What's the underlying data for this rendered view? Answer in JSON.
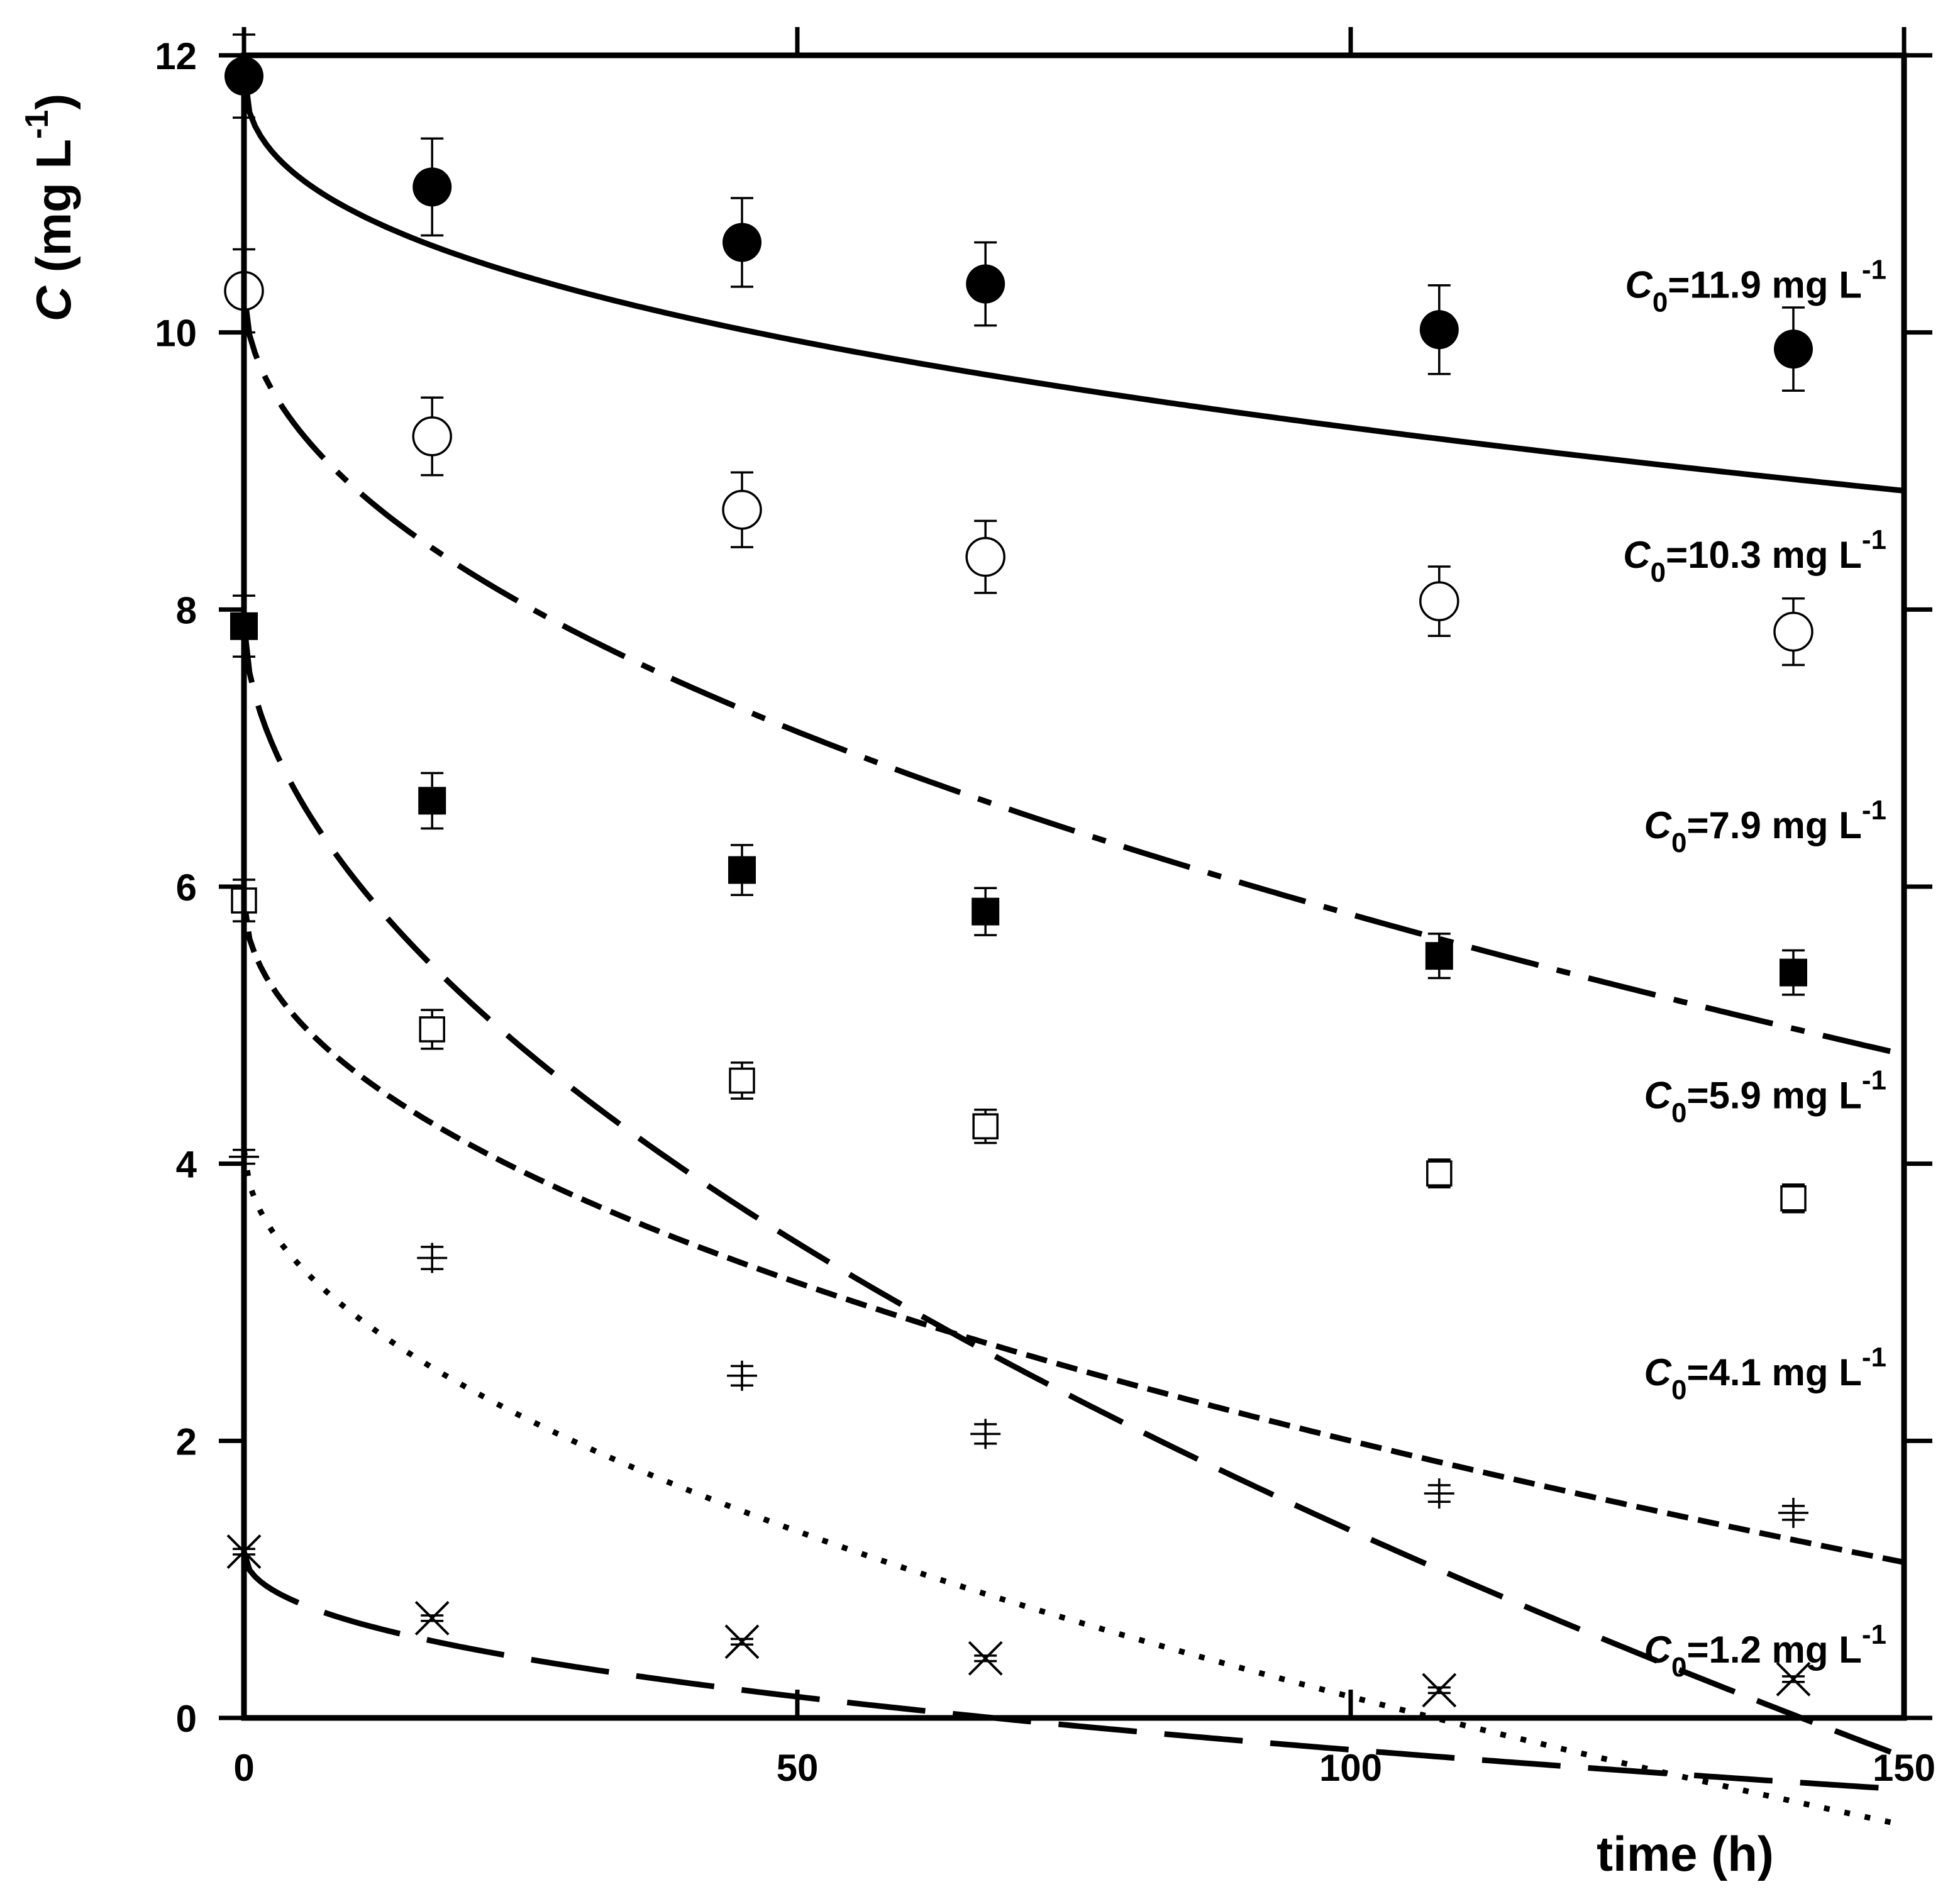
{
  "chart_data": {
    "type": "scatter",
    "xlabel": "time (h)",
    "ylabel": {
      "symbol": "C",
      "rest": " (mg L",
      "sup": "-1",
      "close": ")"
    },
    "xlim": [
      0,
      150
    ],
    "ylim": [
      0,
      12
    ],
    "xticks": [
      0,
      50,
      100,
      150
    ],
    "yticks": [
      0,
      2,
      4,
      6,
      8,
      10,
      12
    ],
    "grid": false,
    "series": [
      {
        "name": "C0=11.9 mg L-1",
        "label": {
          "symbol": "C",
          "sub": "0",
          "text": "=11.9 mg L",
          "sup": "-1",
          "x": 150,
          "y": 10.25
        },
        "marker": "filled-circle",
        "line": "solid",
        "x": [
          0,
          17,
          45,
          67,
          108,
          140
        ],
        "y": [
          11.85,
          11.05,
          10.65,
          10.35,
          10.02,
          9.88
        ],
        "err": [
          0.3,
          0.35,
          0.32,
          0.3,
          0.32,
          0.3
        ],
        "fit": {
          "a": 11.9,
          "b": 0.41,
          "c": 0.4
        }
      },
      {
        "name": "C0=10.3 mg L-1",
        "label": {
          "symbol": "C",
          "sub": "0",
          "text": "=10.3 mg L",
          "sup": "-1",
          "x": 150,
          "y": 8.3
        },
        "marker": "open-circle",
        "line": "dashdot",
        "x": [
          0,
          17,
          45,
          67,
          108,
          140
        ],
        "y": [
          10.3,
          9.25,
          8.72,
          8.38,
          8.06,
          7.84
        ],
        "err": [
          0.3,
          0.28,
          0.27,
          0.26,
          0.25,
          0.24
        ],
        "fit": {
          "a": 10.3,
          "b": 0.45,
          "c": 0.5
        }
      },
      {
        "name": "C0=7.9 mg L-1",
        "label": {
          "symbol": "C",
          "sub": "0",
          "text": "=7.9 mg L",
          "sup": "-1",
          "x": 150,
          "y": 6.35
        },
        "marker": "filled-square",
        "line": "dashed",
        "x": [
          0,
          17,
          45,
          67,
          108,
          140
        ],
        "y": [
          7.88,
          6.62,
          6.12,
          5.82,
          5.5,
          5.38
        ],
        "err": [
          0.22,
          0.2,
          0.18,
          0.17,
          0.16,
          0.16
        ],
        "fit": {
          "a": 7.9,
          "b": 0.52,
          "c": 0.55
        }
      },
      {
        "name": "C0=5.9 mg L-1",
        "label": {
          "symbol": "C",
          "sub": "0",
          "text": "=5.9 mg L",
          "sup": "-1",
          "x": 150,
          "y": 4.4
        },
        "marker": "open-square",
        "line": "short-dash",
        "x": [
          0,
          17,
          45,
          67,
          108,
          140
        ],
        "y": [
          5.9,
          4.97,
          4.6,
          4.27,
          3.93,
          3.75
        ],
        "err": [
          0.15,
          0.14,
          0.13,
          0.12,
          0.1,
          0.1
        ],
        "fit": {
          "a": 5.9,
          "b": 0.39,
          "c": 0.5
        }
      },
      {
        "name": "C0=4.1 mg L-1",
        "label": {
          "symbol": "C",
          "sub": "0",
          "text": "=4.1 mg L",
          "sup": "-1",
          "x": 150,
          "y": 2.4
        },
        "marker": "plus",
        "line": "dotted",
        "x": [
          0,
          17,
          45,
          67,
          108,
          140
        ],
        "y": [
          4.05,
          3.32,
          2.47,
          2.05,
          1.62,
          1.48
        ],
        "err": [
          0.05,
          0.08,
          0.07,
          0.07,
          0.06,
          0.05
        ],
        "fit": {
          "a": 4.1,
          "b": 0.36,
          "c": 0.52
        }
      },
      {
        "name": "C0=1.2 mg L-1",
        "label": {
          "symbol": "C",
          "sub": "0",
          "text": "=1.2 mg L",
          "sup": "-1",
          "x": 150,
          "y": 0.4
        },
        "marker": "cross",
        "line": "long-dash",
        "x": [
          0,
          17,
          45,
          67,
          108,
          140
        ],
        "y": [
          1.2,
          0.72,
          0.55,
          0.43,
          0.2,
          0.28
        ],
        "err": [
          0.02,
          0.02,
          0.02,
          0.02,
          0.02,
          0.02
        ],
        "fit": {
          "a": 1.2,
          "b": 0.18,
          "c": 0.45
        }
      }
    ]
  }
}
